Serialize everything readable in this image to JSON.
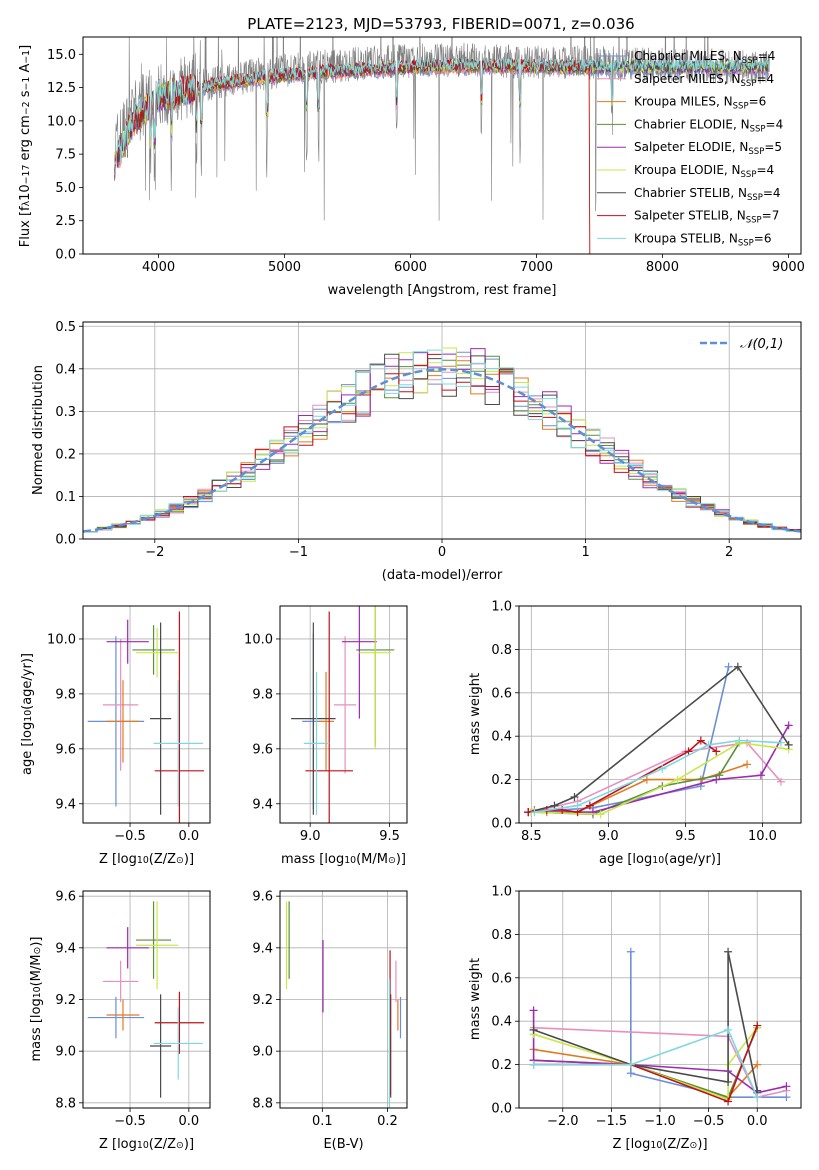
{
  "figure": {
    "title": "PLATE=2123, MJD=53793, FIBERID=0071, z=0.036"
  },
  "series": [
    {
      "name": "Chabrier MILES, N",
      "sub": "SSP",
      "tail": "=4",
      "color": "#6a8fd8"
    },
    {
      "name": "Salpeter MILES, N",
      "sub": "SSP",
      "tail": "=4",
      "color": "#e98fc0"
    },
    {
      "name": "Kroupa MILES, N",
      "sub": "SSP",
      "tail": "=6",
      "color": "#e07b22"
    },
    {
      "name": "Chabrier ELODIE, N",
      "sub": "SSP",
      "tail": "=4",
      "color": "#5b8f3a"
    },
    {
      "name": "Salpeter ELODIE, N",
      "sub": "SSP",
      "tail": "=5",
      "color": "#9d2ab0"
    },
    {
      "name": "Kroupa ELODIE, N",
      "sub": "SSP",
      "tail": "=4",
      "color": "#c8e84a"
    },
    {
      "name": "Chabrier STELIB, N",
      "sub": "SSP",
      "tail": "=4",
      "color": "#4a4a4a"
    },
    {
      "name": "Salpeter STELIB, N",
      "sub": "SSP",
      "tail": "=7",
      "color": "#c0101a"
    },
    {
      "name": "Kroupa STELIB, N",
      "sub": "SSP",
      "tail": "=6",
      "color": "#7fd8e0"
    }
  ],
  "chart_data": [
    {
      "id": "spectrum",
      "type": "line",
      "title": "PLATE=2123, MJD=53793, FIBERID=0071, z=0.036",
      "xlabel": "wavelength [Angstrom, rest frame]",
      "ylabel_parts": [
        "Flux [f",
        "λ",
        "10",
        "−17",
        " erg cm",
        "−2",
        " s",
        "−1",
        " A",
        "−1",
        "]"
      ],
      "xlim": [
        3400,
        9100
      ],
      "ylim": [
        0,
        16.3
      ],
      "xticks": [
        4000,
        5000,
        6000,
        7000,
        8000,
        9000
      ],
      "yticks": [
        0.0,
        2.5,
        5.0,
        7.5,
        10.0,
        12.5,
        15.0
      ],
      "observed_color": "#808080",
      "observed_anchor_points": {
        "x": [
          3650,
          3800,
          4000,
          4400,
          4800,
          5200,
          5600,
          6000,
          6400,
          6800,
          7200,
          7600,
          8000,
          8400,
          8800
        ],
        "y": [
          8.0,
          10.5,
          12.0,
          12.8,
          13.5,
          14.0,
          14.3,
          14.5,
          14.6,
          14.5,
          14.4,
          14.3,
          14.2,
          14.1,
          14.0
        ]
      },
      "model_anchor_points": {
        "x": [
          3650,
          3800,
          4000,
          4400,
          4800,
          5200,
          5600,
          6000,
          6400,
          6800,
          7200,
          7600,
          8000,
          8400,
          8850
        ],
        "y": [
          6.8,
          10.0,
          11.8,
          12.6,
          13.2,
          13.6,
          13.8,
          14.0,
          14.1,
          14.1,
          14.0,
          14.0,
          14.0,
          14.0,
          14.0
        ]
      },
      "legend_position": "upper right"
    },
    {
      "id": "residual_hist",
      "type": "histogram",
      "xlabel": "(data-model)/error",
      "ylabel": "Normed distribution",
      "xlim": [
        -2.5,
        2.5
      ],
      "ylim": [
        0,
        0.51
      ],
      "xticks": [
        -2,
        -1,
        0,
        1,
        2
      ],
      "yticks": [
        0.0,
        0.1,
        0.2,
        0.3,
        0.4,
        0.5
      ],
      "bin_width": 0.1,
      "reference_curve": {
        "label": "𝒩(0,1)",
        "color": "#5b8fd8",
        "style": "dashed"
      },
      "legend_position": "upper right"
    },
    {
      "id": "age_vs_Z",
      "type": "errorbar",
      "xlabel_parts": [
        "Z [log",
        "10",
        "(Z/Z",
        "⊙",
        ")]"
      ],
      "ylabel_parts": [
        "age  [log",
        "10",
        "(age/yr)]"
      ],
      "xlim": [
        -0.9,
        0.18
      ],
      "ylim": [
        9.33,
        10.12
      ],
      "xticks": [
        -0.5,
        0.0
      ],
      "yticks": [
        9.4,
        9.6,
        9.8,
        10.0
      ],
      "points": [
        {
          "series": 0,
          "x": -0.62,
          "y": 9.7,
          "xerr": 0.24,
          "yerr": 0.31
        },
        {
          "series": 1,
          "x": -0.58,
          "y": 9.76,
          "xerr": 0.15,
          "yerr": 0.24
        },
        {
          "series": 2,
          "x": -0.56,
          "y": 9.7,
          "xerr": 0.14,
          "yerr": 0.15
        },
        {
          "series": 3,
          "x": -0.3,
          "y": 9.96,
          "xerr": 0.18,
          "yerr": 0.09
        },
        {
          "series": 4,
          "x": -0.52,
          "y": 9.99,
          "xerr": 0.18,
          "yerr": 0.08
        },
        {
          "series": 5,
          "x": -0.27,
          "y": 9.95,
          "xerr": 0.18,
          "yerr": 0.09
        },
        {
          "series": 6,
          "x": -0.24,
          "y": 9.71,
          "xerr": 0.09,
          "yerr": 0.35
        },
        {
          "series": 7,
          "x": -0.08,
          "y": 9.52,
          "xerr": 0.21,
          "yerr": 0.58
        },
        {
          "series": 8,
          "x": -0.09,
          "y": 9.62,
          "xerr": 0.21,
          "yerr": 0.23
        }
      ]
    },
    {
      "id": "age_vs_mass",
      "type": "errorbar",
      "xlabel_parts": [
        "mass [log",
        "10",
        "(M/M",
        "⊙",
        ")]"
      ],
      "xlim": [
        8.81,
        9.61
      ],
      "ylim": [
        9.33,
        10.12
      ],
      "xticks": [
        9.0,
        9.5
      ],
      "yticks": [
        9.4,
        9.6,
        9.8,
        10.0
      ],
      "points": [
        {
          "series": 0,
          "x": 9.02,
          "y": 9.7,
          "xerr": 0.07,
          "yerr": 0.32
        },
        {
          "series": 1,
          "x": 9.22,
          "y": 9.76,
          "xerr": 0.07,
          "yerr": 0.25
        },
        {
          "series": 2,
          "x": 9.1,
          "y": 9.7,
          "xerr": 0.05,
          "yerr": 0.18
        },
        {
          "series": 3,
          "x": 9.41,
          "y": 9.96,
          "xerr": 0.12,
          "yerr": 0.35
        },
        {
          "series": 4,
          "x": 9.31,
          "y": 9.99,
          "xerr": 0.11,
          "yerr": 0.28
        },
        {
          "series": 5,
          "x": 9.41,
          "y": 9.95,
          "xerr": 0.1,
          "yerr": 0.35
        },
        {
          "series": 6,
          "x": 9.02,
          "y": 9.71,
          "xerr": 0.14,
          "yerr": 0.35
        },
        {
          "series": 7,
          "x": 9.12,
          "y": 9.52,
          "xerr": 0.15,
          "yerr": 0.58
        },
        {
          "series": 8,
          "x": 9.04,
          "y": 9.62,
          "xerr": 0.08,
          "yerr": 0.26
        }
      ]
    },
    {
      "id": "mass_weight_vs_age",
      "type": "line",
      "xlabel_parts": [
        "age  [log",
        "10",
        "(age/yr)]"
      ],
      "ylabel": "mass weight",
      "xlim": [
        8.42,
        10.25
      ],
      "ylim": [
        0,
        1.0
      ],
      "xticks": [
        8.5,
        9.0,
        9.5,
        10.0
      ],
      "yticks": [
        0.0,
        0.2,
        0.4,
        0.6,
        0.8,
        1.0
      ],
      "lines": [
        {
          "series": 0,
          "x": [
            8.48,
            8.9,
            9.6,
            9.78
          ],
          "y": [
            0.05,
            0.07,
            0.17,
            0.72
          ]
        },
        {
          "series": 1,
          "x": [
            8.5,
            8.8,
            9.5,
            9.9,
            10.12
          ],
          "y": [
            0.05,
            0.1,
            0.33,
            0.37,
            0.19
          ]
        },
        {
          "series": 2,
          "x": [
            8.52,
            8.6,
            8.8,
            9.25,
            9.6,
            9.9
          ],
          "y": [
            0.06,
            0.05,
            0.05,
            0.2,
            0.2,
            0.27
          ]
        },
        {
          "series": 3,
          "x": [
            8.5,
            8.9,
            9.35,
            9.72,
            9.85
          ],
          "y": [
            0.05,
            0.04,
            0.17,
            0.22,
            0.37
          ]
        },
        {
          "series": 4,
          "x": [
            8.48,
            8.9,
            9.7,
            9.99,
            10.17
          ],
          "y": [
            0.05,
            0.05,
            0.2,
            0.22,
            0.45
          ]
        },
        {
          "series": 5,
          "x": [
            8.5,
            8.95,
            9.45,
            9.85,
            10.17
          ],
          "y": [
            0.05,
            0.04,
            0.2,
            0.37,
            0.34
          ]
        },
        {
          "series": 6,
          "x": [
            8.48,
            8.65,
            8.78,
            9.84,
            10.17
          ],
          "y": [
            0.05,
            0.08,
            0.12,
            0.72,
            0.36
          ]
        },
        {
          "series": 7,
          "x": [
            8.48,
            8.6,
            8.7,
            8.8,
            8.88,
            9.52,
            9.6,
            9.7
          ],
          "y": [
            0.05,
            0.06,
            0.06,
            0.05,
            0.08,
            0.33,
            0.38,
            0.33
          ]
        },
        {
          "series": 8,
          "x": [
            8.52,
            8.8,
            9.35,
            9.65,
            9.85,
            10.12
          ],
          "y": [
            0.05,
            0.08,
            0.25,
            0.36,
            0.38,
            0.37
          ]
        }
      ]
    },
    {
      "id": "mass_vs_Z",
      "type": "errorbar",
      "xlabel_parts": [
        "Z [log",
        "10",
        "(Z/Z",
        "⊙",
        ")]"
      ],
      "ylabel_parts": [
        "mass [log",
        "10",
        "(M/M",
        "⊙",
        ")]"
      ],
      "xlim": [
        -0.9,
        0.18
      ],
      "ylim": [
        8.78,
        9.62
      ],
      "xticks": [
        -0.5,
        0.0
      ],
      "yticks": [
        8.8,
        9.0,
        9.2,
        9.4,
        9.6
      ],
      "points": [
        {
          "series": 0,
          "x": -0.62,
          "y": 9.13,
          "xerr": 0.24,
          "yerr": 0.08
        },
        {
          "series": 1,
          "x": -0.58,
          "y": 9.27,
          "xerr": 0.15,
          "yerr": 0.08
        },
        {
          "series": 2,
          "x": -0.56,
          "y": 9.14,
          "xerr": 0.14,
          "yerr": 0.06
        },
        {
          "series": 3,
          "x": -0.3,
          "y": 9.43,
          "xerr": 0.15,
          "yerr": 0.15
        },
        {
          "series": 4,
          "x": -0.52,
          "y": 9.4,
          "xerr": 0.18,
          "yerr": 0.08
        },
        {
          "series": 5,
          "x": -0.27,
          "y": 9.41,
          "xerr": 0.18,
          "yerr": 0.17
        },
        {
          "series": 6,
          "x": -0.24,
          "y": 9.02,
          "xerr": 0.09,
          "yerr": 0.2
        },
        {
          "series": 7,
          "x": -0.08,
          "y": 9.11,
          "xerr": 0.21,
          "yerr": 0.12
        },
        {
          "series": 8,
          "x": -0.09,
          "y": 9.03,
          "xerr": 0.21,
          "yerr": 0.14
        }
      ]
    },
    {
      "id": "mass_vs_EBV",
      "type": "errorbar",
      "xlabel": "E(B-V)",
      "xlim": [
        0.035,
        0.23
      ],
      "ylim": [
        8.78,
        9.62
      ],
      "xticks": [
        0.1,
        0.2
      ],
      "yticks": [
        8.8,
        9.0,
        9.2,
        9.4,
        9.6
      ],
      "points": [
        {
          "series": 0,
          "x": 0.22,
          "y": 9.13,
          "xerr": 0.0,
          "yerr": 0.08
        },
        {
          "series": 1,
          "x": 0.213,
          "y": 9.27,
          "xerr": 0.0,
          "yerr": 0.08
        },
        {
          "series": 2,
          "x": 0.216,
          "y": 9.14,
          "xerr": 0.0,
          "yerr": 0.06
        },
        {
          "series": 3,
          "x": 0.049,
          "y": 9.43,
          "xerr": 0.0,
          "yerr": 0.15
        },
        {
          "series": 4,
          "x": 0.101,
          "y": 9.29,
          "xerr": 0.0,
          "yerr": 0.14
        },
        {
          "series": 5,
          "x": 0.045,
          "y": 9.41,
          "xerr": 0.0,
          "yerr": 0.17
        },
        {
          "series": 6,
          "x": 0.205,
          "y": 9.02,
          "xerr": 0.0,
          "yerr": 0.2
        },
        {
          "series": 7,
          "x": 0.204,
          "y": 9.11,
          "xerr": 0.0,
          "yerr": 0.28
        },
        {
          "series": 8,
          "x": 0.203,
          "y": 9.03,
          "xerr": 0.0,
          "yerr": 0.25
        }
      ]
    },
    {
      "id": "mass_weight_vs_Z",
      "type": "line",
      "xlabel_parts": [
        "Z [log",
        "10",
        "(Z/Z",
        "⊙",
        ")]"
      ],
      "ylabel": "mass weight",
      "xlim": [
        -2.45,
        0.45
      ],
      "ylim": [
        0,
        1.0
      ],
      "xticks": [
        -2.0,
        -1.5,
        -1.0,
        -0.5,
        0.0
      ],
      "yticks": [
        0.0,
        0.2,
        0.4,
        0.6,
        0.8,
        1.0
      ],
      "lines": [
        {
          "series": 0,
          "x": [
            -1.3,
            -1.3,
            -0.3,
            0.0,
            0.3
          ],
          "y": [
            0.72,
            0.16,
            0.05,
            0.05,
            0.05
          ]
        },
        {
          "series": 1,
          "x": [
            -2.3,
            -0.3,
            0.0,
            0.3
          ],
          "y": [
            0.37,
            0.33,
            0.05,
            0.08
          ]
        },
        {
          "series": 2,
          "x": [
            -2.3,
            -1.3,
            -0.3,
            0.0
          ],
          "y": [
            0.27,
            0.2,
            0.05,
            0.2
          ]
        },
        {
          "series": 3,
          "x": [
            -2.3,
            -1.3,
            -0.3,
            0.0
          ],
          "y": [
            0.22,
            0.2,
            0.05,
            0.37
          ]
        },
        {
          "series": 4,
          "x": [
            -2.3,
            -2.3,
            -1.3,
            -0.3,
            0.0,
            0.3
          ],
          "y": [
            0.45,
            0.22,
            0.2,
            0.17,
            0.07,
            0.1
          ]
        },
        {
          "series": 5,
          "x": [
            -2.3,
            -1.3,
            -0.3,
            -0.3,
            0.0
          ],
          "y": [
            0.34,
            0.2,
            0.04,
            0.2,
            0.37
          ]
        },
        {
          "series": 6,
          "x": [
            -2.3,
            -1.3,
            -0.3,
            -0.3,
            0.0
          ],
          "y": [
            0.36,
            0.2,
            0.12,
            0.72,
            0.08
          ]
        },
        {
          "series": 7,
          "x": [
            -2.3,
            -1.3,
            -0.3,
            0.0
          ],
          "y": [
            0.2,
            0.2,
            0.03,
            0.38
          ]
        },
        {
          "series": 8,
          "x": [
            -2.3,
            -1.3,
            -0.3,
            0.0
          ],
          "y": [
            0.2,
            0.2,
            0.36,
            0.05
          ]
        }
      ]
    }
  ]
}
